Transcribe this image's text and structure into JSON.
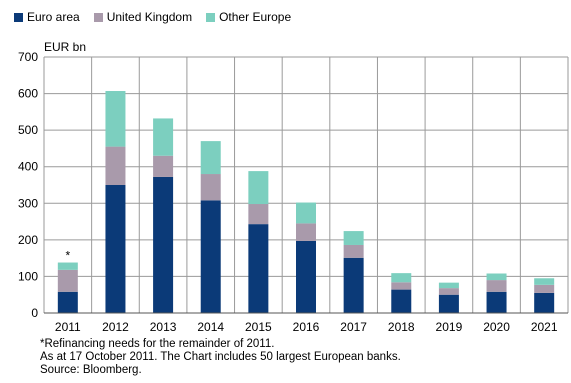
{
  "chart_data": {
    "type": "bar",
    "stacked": true,
    "ylabel": "EUR bn",
    "ylim": [
      0,
      700
    ],
    "yticks": [
      0,
      100,
      200,
      300,
      400,
      500,
      600,
      700
    ],
    "grid": true,
    "legend_position": "top-left",
    "categories": [
      "2011",
      "2012",
      "2013",
      "2014",
      "2015",
      "2016",
      "2017",
      "2018",
      "2019",
      "2020",
      "2021"
    ],
    "series": [
      {
        "name": "Euro area",
        "color": "#0b3a78",
        "values": [
          58,
          350,
          372,
          308,
          243,
          197,
          151,
          64,
          50,
          58,
          55
        ]
      },
      {
        "name": "United Kingdom",
        "color": "#a99aab",
        "values": [
          60,
          105,
          58,
          72,
          55,
          48,
          35,
          20,
          18,
          32,
          22
        ]
      },
      {
        "name": "Other Europe",
        "color": "#7ccfbf",
        "values": [
          20,
          152,
          102,
          90,
          90,
          57,
          38,
          25,
          15,
          18,
          18
        ]
      }
    ],
    "annotation": {
      "text": "*",
      "category": "2011"
    }
  },
  "notes": [
    "*Refinancing needs for the remainder of 2011.",
    "As at 17 October 2011. The Chart includes 50 largest European banks.",
    "Source: Bloomberg."
  ]
}
